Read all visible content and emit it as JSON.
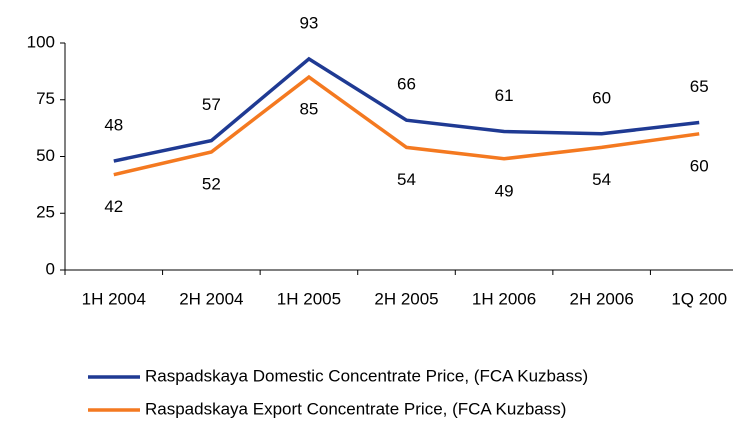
{
  "chart_data": {
    "type": "line",
    "categories": [
      "1H 2004",
      "2H 2004",
      "1H 2005",
      "2H 2005",
      "1H 2006",
      "2H 2006",
      "1Q 200"
    ],
    "series": [
      {
        "name": "Raspadskaya Domestic Concentrate Price, (FCA Kuzbass)",
        "color": "#1f3a93",
        "values": [
          48,
          57,
          93,
          66,
          61,
          60,
          65
        ]
      },
      {
        "name": "Raspadskaya Export Concentrate Price, (FCA Kuzbass)",
        "color": "#f47920",
        "values": [
          42,
          52,
          85,
          54,
          49,
          54,
          60
        ]
      }
    ],
    "ylim": [
      0,
      100
    ],
    "yticks": [
      0,
      25,
      50,
      75,
      100
    ],
    "grid": false,
    "legend": "bottom"
  }
}
